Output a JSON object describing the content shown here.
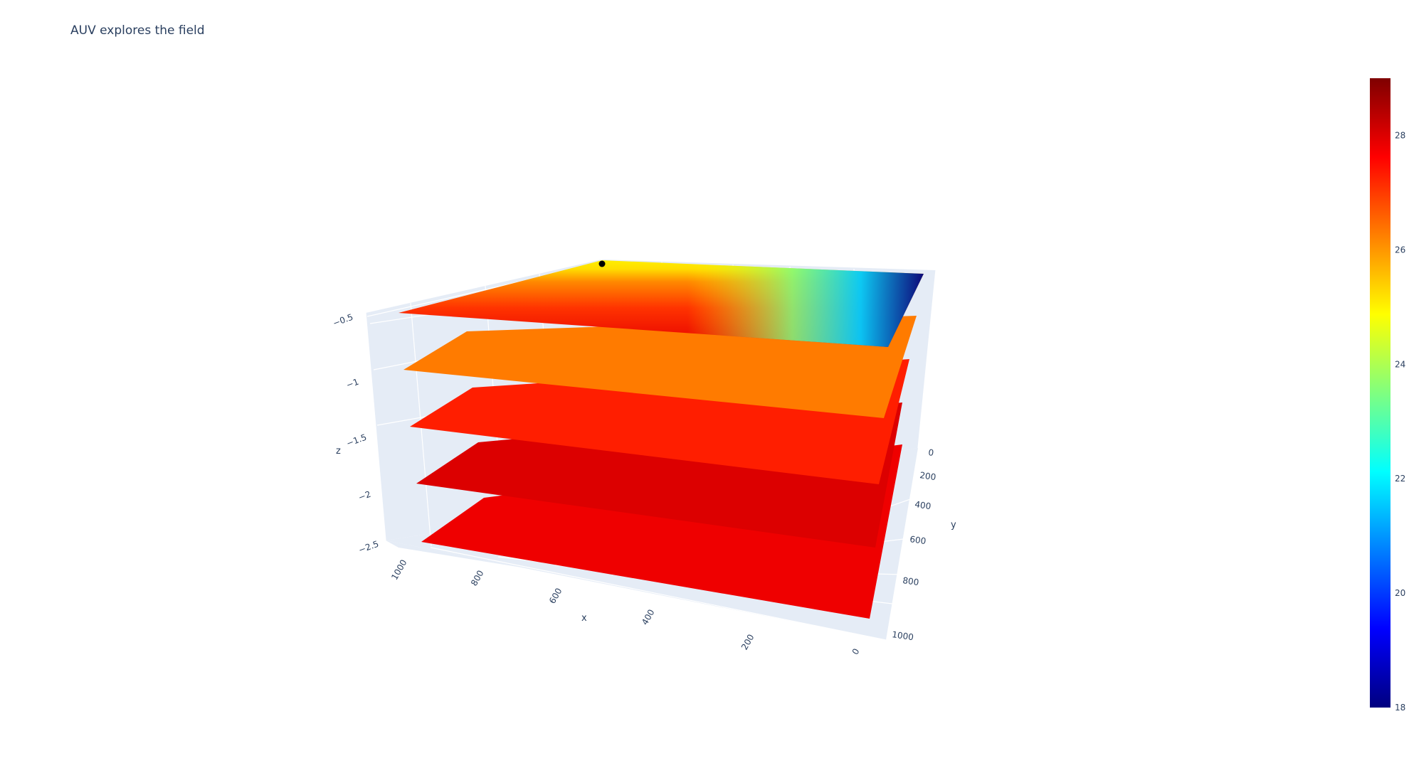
{
  "title": "AUV explores the field",
  "chart_data": {
    "type": "surface",
    "title": "AUV explores the field",
    "xlabel": "x",
    "ylabel": "y",
    "zlabel": "z",
    "xlim": [
      0,
      1000
    ],
    "ylim": [
      0,
      1000
    ],
    "zlim": [
      -2.5,
      -0.5
    ],
    "x_ticks": [
      0,
      200,
      400,
      600,
      800,
      1000
    ],
    "y_ticks": [
      0,
      200,
      400,
      600,
      800,
      1000
    ],
    "z_ticks": [
      -2.5,
      -2,
      -1.5,
      -1,
      -0.5
    ],
    "z_tick_labels": [
      "−2.5",
      "−2",
      "−1.5",
      "−1",
      "−0.5"
    ],
    "colorscale": "Jet",
    "color_range": [
      18,
      29
    ],
    "colorbar_ticks": [
      18,
      20,
      22,
      24,
      26,
      28
    ],
    "colors": {
      "scene_bg": "#e5ecf6",
      "grid": "#ffffff",
      "auv_marker": "#000000"
    },
    "layers": [
      {
        "depth": -0.5,
        "value_description": "gradient",
        "min": 18,
        "max": 27.5
      },
      {
        "depth": -1.0,
        "value": 26.3
      },
      {
        "depth": -1.5,
        "value": 27.3
      },
      {
        "depth": -2.0,
        "value": 28.0
      },
      {
        "depth": -2.5,
        "value": 27.8
      }
    ],
    "auv_position": {
      "x": 1000,
      "y": 0,
      "z": -0.5
    }
  }
}
